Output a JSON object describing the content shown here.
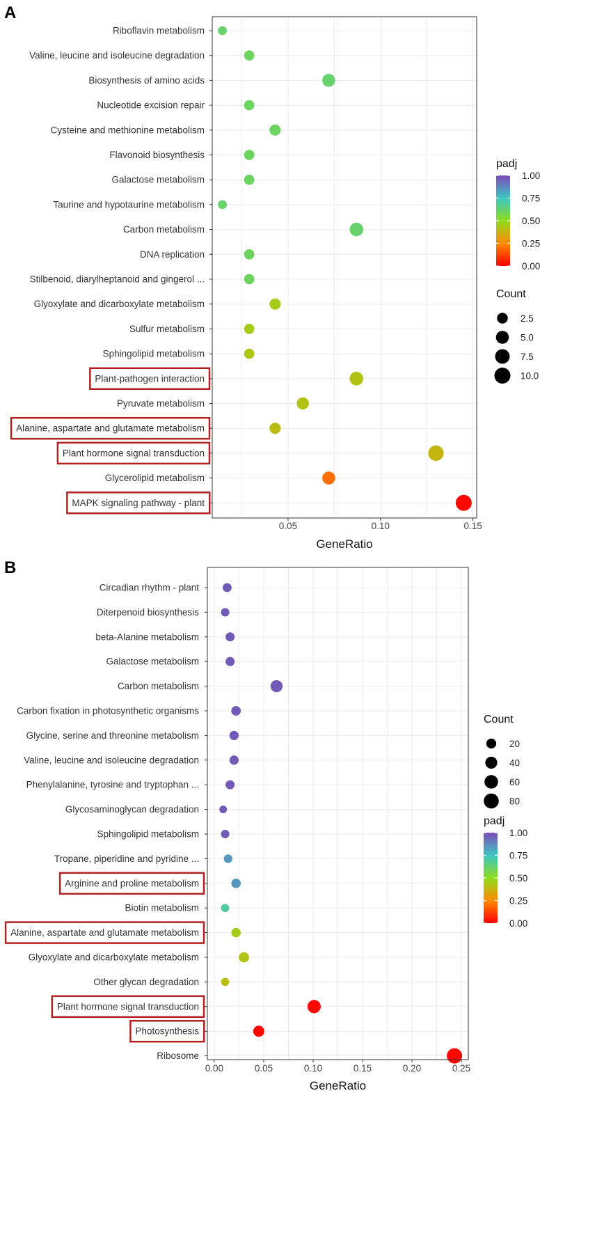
{
  "chart_data": [
    {
      "panel": "A",
      "type": "scatter",
      "xlabel": "GeneRatio",
      "xlim": [
        0.009,
        0.152
      ],
      "xticks": [
        0.05,
        0.1,
        0.15
      ],
      "xtick_labels": [
        "0.05",
        "0.10",
        "0.15"
      ],
      "terms": [
        {
          "label": "Riboflavin metabolism",
          "x": 0.0145,
          "count": 1,
          "padj": 0.62,
          "highlight": false
        },
        {
          "label": "Valine, leucine and isoleucine degradation",
          "x": 0.029,
          "count": 2,
          "padj": 0.6,
          "highlight": false
        },
        {
          "label": "Biosynthesis of amino acids",
          "x": 0.072,
          "count": 5,
          "padj": 0.62,
          "highlight": false
        },
        {
          "label": "Nucleotide excision repair",
          "x": 0.029,
          "count": 2,
          "padj": 0.6,
          "highlight": false
        },
        {
          "label": "Cysteine and methionine metabolism",
          "x": 0.043,
          "count": 3,
          "padj": 0.6,
          "highlight": false
        },
        {
          "label": "Flavonoid biosynthesis",
          "x": 0.029,
          "count": 2,
          "padj": 0.6,
          "highlight": false
        },
        {
          "label": "Galactose metabolism",
          "x": 0.029,
          "count": 2,
          "padj": 0.6,
          "highlight": false
        },
        {
          "label": "Taurine and hypotaurine metabolism",
          "x": 0.0145,
          "count": 1,
          "padj": 0.62,
          "highlight": false
        },
        {
          "label": "Carbon metabolism",
          "x": 0.087,
          "count": 6,
          "padj": 0.62,
          "highlight": false
        },
        {
          "label": "DNA replication",
          "x": 0.029,
          "count": 2,
          "padj": 0.6,
          "highlight": false
        },
        {
          "label": "Stilbenoid, diarylheptanoid and gingerol ...",
          "x": 0.029,
          "count": 2,
          "padj": 0.6,
          "highlight": false
        },
        {
          "label": "Glyoxylate and dicarboxylate metabolism",
          "x": 0.043,
          "count": 3,
          "padj": 0.45,
          "highlight": false
        },
        {
          "label": "Sulfur metabolism",
          "x": 0.029,
          "count": 2,
          "padj": 0.45,
          "highlight": false
        },
        {
          "label": "Sphingolipid metabolism",
          "x": 0.029,
          "count": 2,
          "padj": 0.43,
          "highlight": false
        },
        {
          "label": "Plant-pathogen interaction",
          "x": 0.087,
          "count": 6,
          "padj": 0.42,
          "highlight": true
        },
        {
          "label": "Pyruvate metabolism",
          "x": 0.058,
          "count": 4,
          "padj": 0.42,
          "highlight": false
        },
        {
          "label": "Alanine, aspartate and glutamate metabolism",
          "x": 0.043,
          "count": 3,
          "padj": 0.4,
          "highlight": true
        },
        {
          "label": "Plant hormone signal transduction",
          "x": 0.13,
          "count": 9,
          "padj": 0.38,
          "highlight": true
        },
        {
          "label": "Glycerolipid metabolism",
          "x": 0.072,
          "count": 5,
          "padj": 0.2,
          "highlight": false
        },
        {
          "label": "MAPK signaling pathway - plant",
          "x": 0.145,
          "count": 10,
          "padj": 0.01,
          "highlight": true
        }
      ],
      "legend_padj": {
        "title": "padj",
        "ticks": [
          "1.00",
          "0.75",
          "0.50",
          "0.25",
          "0.00"
        ],
        "values": [
          1.0,
          0.75,
          0.5,
          0.25,
          0.0
        ]
      },
      "legend_count": {
        "title": "Count",
        "ticks": [
          "2.5",
          "5.0",
          "7.5",
          "10.0"
        ],
        "values": [
          2.5,
          5.0,
          7.5,
          10.0
        ],
        "max": 10
      }
    },
    {
      "panel": "B",
      "type": "scatter",
      "xlabel": "GeneRatio",
      "xlim": [
        -0.007,
        0.257
      ],
      "xticks": [
        0.0,
        0.05,
        0.1,
        0.15,
        0.2,
        0.25
      ],
      "xtick_labels": [
        "0.00",
        "0.05",
        "0.10",
        "0.15",
        "0.20",
        "0.25"
      ],
      "terms": [
        {
          "label": "Circadian rhythm - plant",
          "x": 0.013,
          "count": 13,
          "padj": 0.97,
          "highlight": false
        },
        {
          "label": "Diterpenoid biosynthesis",
          "x": 0.011,
          "count": 10,
          "padj": 0.97,
          "highlight": false
        },
        {
          "label": "beta-Alanine metabolism",
          "x": 0.016,
          "count": 14,
          "padj": 0.97,
          "highlight": false
        },
        {
          "label": "Galactose metabolism",
          "x": 0.016,
          "count": 14,
          "padj": 0.97,
          "highlight": false
        },
        {
          "label": "Carbon metabolism",
          "x": 0.063,
          "count": 40,
          "padj": 0.97,
          "highlight": false
        },
        {
          "label": "Carbon fixation in photosynthetic organisms",
          "x": 0.022,
          "count": 17,
          "padj": 0.97,
          "highlight": false
        },
        {
          "label": "Glycine, serine and threonine metabolism",
          "x": 0.02,
          "count": 15,
          "padj": 0.97,
          "highlight": false
        },
        {
          "label": "Valine, leucine and isoleucine degradation",
          "x": 0.02,
          "count": 15,
          "padj": 0.97,
          "highlight": false
        },
        {
          "label": "Phenylalanine, tyrosine and tryptophan ...",
          "x": 0.016,
          "count": 13,
          "padj": 0.97,
          "highlight": false
        },
        {
          "label": "Glycosaminoglycan degradation",
          "x": 0.009,
          "count": 6,
          "padj": 0.97,
          "highlight": false
        },
        {
          "label": "Sphingolipid metabolism",
          "x": 0.011,
          "count": 10,
          "padj": 0.97,
          "highlight": false
        },
        {
          "label": "Tropane, piperidine and pyridine ...",
          "x": 0.014,
          "count": 11,
          "padj": 0.85,
          "highlight": false
        },
        {
          "label": "Arginine and proline metabolism",
          "x": 0.022,
          "count": 16,
          "padj": 0.85,
          "highlight": true
        },
        {
          "label": "Biotin metabolism",
          "x": 0.011,
          "count": 8,
          "padj": 0.7,
          "highlight": false
        },
        {
          "label": "Alanine, aspartate and glutamate metabolism",
          "x": 0.022,
          "count": 16,
          "padj": 0.45,
          "highlight": true
        },
        {
          "label": "Glyoxylate and dicarboxylate metabolism",
          "x": 0.03,
          "count": 22,
          "padj": 0.42,
          "highlight": false
        },
        {
          "label": "Other glycan degradation",
          "x": 0.011,
          "count": 8,
          "padj": 0.4,
          "highlight": false
        },
        {
          "label": "Plant hormone signal transduction",
          "x": 0.101,
          "count": 55,
          "padj": 0.01,
          "highlight": true
        },
        {
          "label": "Photosynthesis",
          "x": 0.045,
          "count": 30,
          "padj": 0.01,
          "highlight": true
        },
        {
          "label": "Ribosome",
          "x": 0.243,
          "count": 85,
          "padj": 0.01,
          "highlight": false
        }
      ],
      "legend_padj": {
        "title": "padj",
        "ticks": [
          "1.00",
          "0.75",
          "0.50",
          "0.25",
          "0.00"
        ],
        "values": [
          1.0,
          0.75,
          0.5,
          0.25,
          0.0
        ]
      },
      "legend_count": {
        "title": "Count",
        "ticks": [
          "20",
          "40",
          "60",
          "80"
        ],
        "values": [
          20,
          40,
          60,
          80
        ],
        "max": 85
      }
    }
  ],
  "colors": {
    "grid": "#ebebeb",
    "panel_border": "#333333",
    "highlight_box": "#b22222",
    "gradient": [
      "#ff0000",
      "#ff8a00",
      "#8edd1e",
      "#3ec6c2",
      "#7b4bb7"
    ]
  }
}
